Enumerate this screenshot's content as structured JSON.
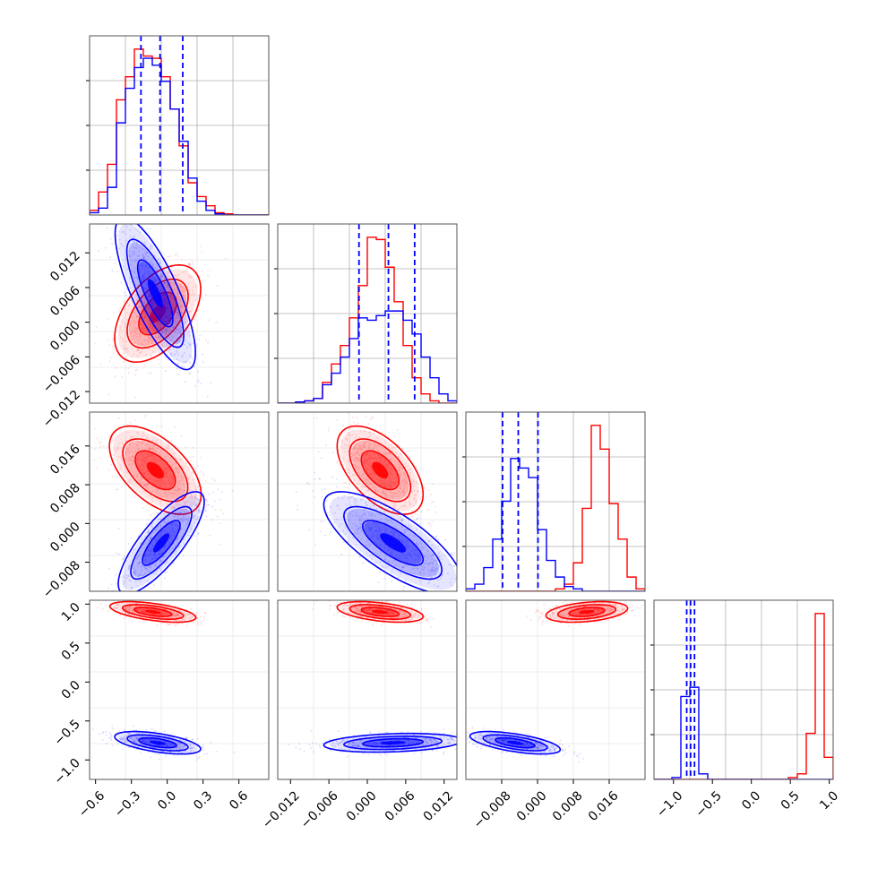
{
  "chart_data": {
    "type": "corner",
    "colors": {
      "red": "#ff0000",
      "blue": "#0000ff",
      "grid": "#b0b0b0",
      "axis": "#000000"
    },
    "series": [
      {
        "color": "#ff0000"
      },
      {
        "color": "#0000ff"
      }
    ],
    "grid": true,
    "panels": {
      "p00": {
        "type": "histogram",
        "xlim": [
          -0.65,
          0.85
        ],
        "red": {
          "edges": [
            -0.65,
            -0.575,
            -0.5,
            -0.425,
            -0.35,
            -0.275,
            -0.2,
            -0.125,
            -0.05,
            0.025,
            0.1,
            0.175,
            0.25,
            0.325,
            0.4,
            0.475,
            0.55,
            0.625,
            0.7,
            0.775,
            0.85
          ],
          "counts": [
            2,
            10,
            22,
            50,
            60,
            72,
            69,
            68,
            60,
            46,
            30,
            14,
            8,
            4,
            1,
            0.5,
            0,
            0,
            0,
            0
          ]
        },
        "blue": {
          "edges": [
            -0.65,
            -0.575,
            -0.5,
            -0.425,
            -0.35,
            -0.275,
            -0.2,
            -0.125,
            -0.05,
            0.025,
            0.1,
            0.175,
            0.25,
            0.325,
            0.4,
            0.475,
            0.55,
            0.625,
            0.7,
            0.775,
            0.85
          ],
          "counts": [
            1,
            3,
            12,
            40,
            55,
            64,
            68,
            65,
            58,
            46,
            32,
            16,
            6,
            2,
            0.5,
            0,
            0,
            0,
            0,
            0
          ]
        },
        "quantiles": [
          -0.22,
          -0.06,
          0.13
        ]
      },
      "p11": {
        "type": "histogram",
        "xlim": [
          -0.014,
          0.014
        ],
        "red": {
          "edges": [
            -0.014,
            -0.0126,
            -0.0112,
            -0.0098,
            -0.0084,
            -0.007,
            -0.0056,
            -0.0042,
            -0.0028,
            -0.0014,
            0,
            0.0014,
            0.0028,
            0.0042,
            0.0056,
            0.007,
            0.0084,
            0.0098,
            0.0112,
            0.0126,
            0.014
          ],
          "counts": [
            0,
            0,
            0.5,
            1,
            2,
            9,
            17,
            25,
            37,
            51,
            72,
            71,
            59,
            44,
            25,
            11,
            4,
            1,
            0,
            0
          ]
        },
        "blue": {
          "edges": [
            -0.014,
            -0.0126,
            -0.0112,
            -0.0098,
            -0.0084,
            -0.007,
            -0.0056,
            -0.0042,
            -0.0028,
            -0.0014,
            0,
            0.0014,
            0.0028,
            0.0042,
            0.0056,
            0.007,
            0.0084,
            0.0098,
            0.0112,
            0.0126,
            0.014
          ],
          "counts": [
            0,
            0,
            0.5,
            1,
            2,
            8,
            13,
            20,
            28,
            37,
            36,
            38,
            40,
            40,
            36,
            30,
            20,
            11,
            4,
            1
          ]
        },
        "quantiles": [
          -0.0013,
          0.0033,
          0.0074
        ]
      },
      "p22": {
        "type": "histogram",
        "xlim": [
          -0.016,
          0.024
        ],
        "red": {
          "edges": [
            -0.016,
            -0.014,
            -0.012,
            -0.01,
            -0.008,
            -0.006,
            -0.004,
            -0.002,
            0,
            0.002,
            0.004,
            0.006,
            0.008,
            0.01,
            0.012,
            0.014,
            0.016,
            0.018,
            0.02,
            0.022,
            0.024
          ],
          "counts": [
            0,
            0,
            0,
            0,
            0,
            0,
            0,
            0,
            0,
            0,
            1,
            3,
            12,
            35,
            70,
            60,
            37,
            22,
            6,
            1
          ]
        },
        "blue": {
          "edges": [
            -0.016,
            -0.014,
            -0.012,
            -0.01,
            -0.008,
            -0.006,
            -0.004,
            -0.002,
            0,
            0.002,
            0.004,
            0.006,
            0.008,
            0.01,
            0.012,
            0.014,
            0.016,
            0.018,
            0.02,
            0.022,
            0.024
          ],
          "counts": [
            1,
            3,
            10,
            22,
            38,
            56,
            52,
            48,
            26,
            13,
            6,
            2,
            1,
            0,
            0,
            0,
            0,
            0,
            0,
            0
          ]
        },
        "quantiles": [
          -0.0078,
          -0.0043,
          0.0001
        ]
      },
      "p33": {
        "type": "histogram",
        "xlim": [
          -1.25,
          1.05
        ],
        "red": {
          "edges": [
            -1.25,
            -1.135,
            -1.02,
            -0.905,
            -0.79,
            -0.675,
            -0.56,
            -0.445,
            -0.33,
            -0.215,
            -0.1,
            0.015,
            0.13,
            0.245,
            0.36,
            0.475,
            0.59,
            0.705,
            0.82,
            0.935,
            1.05
          ],
          "counts": [
            0,
            0,
            0,
            0,
            0,
            0,
            0,
            0,
            0,
            0,
            0,
            0,
            0,
            0,
            0,
            1,
            3,
            25,
            90,
            12
          ]
        },
        "blue": {
          "edges": [
            -1.25,
            -1.135,
            -1.02,
            -0.905,
            -0.79,
            -0.675,
            -0.56,
            -0.445,
            -0.33,
            -0.215,
            -0.1,
            0.015,
            0.13,
            0.245,
            0.36,
            0.475,
            0.59,
            0.705,
            0.82,
            0.935,
            1.05
          ],
          "counts": [
            0,
            0,
            1,
            45,
            50,
            3,
            0,
            0,
            0,
            0,
            0,
            0,
            0,
            0,
            0,
            0,
            0,
            0,
            0,
            0
          ]
        },
        "quantiles": [
          -0.83,
          -0.78,
          -0.73
        ]
      },
      "p10": {
        "type": "contour2d",
        "xlim": [
          -0.65,
          0.85
        ],
        "ylim": [
          -0.014,
          0.017
        ],
        "red": {
          "mean": [
            -0.08,
            0.0015
          ],
          "sd": [
            0.15,
            0.0035
          ],
          "rho": 0.5
        },
        "blue": {
          "mean": [
            -0.1,
            0.005
          ],
          "sd": [
            0.14,
            0.0055
          ],
          "rho": -0.78
        }
      },
      "p20": {
        "type": "contour2d",
        "xlim": [
          -0.65,
          0.85
        ],
        "ylim": [
          -0.014,
          0.023
        ],
        "red": {
          "mean": [
            -0.1,
            0.011
          ],
          "sd": [
            0.16,
            0.0038
          ],
          "rho": -0.55
        },
        "blue": {
          "mean": [
            -0.05,
            -0.004
          ],
          "sd": [
            0.15,
            0.0044
          ],
          "rho": 0.8
        }
      },
      "p21": {
        "type": "contour2d",
        "xlim": [
          -0.014,
          0.014
        ],
        "ylim": [
          -0.014,
          0.023
        ],
        "red": {
          "mean": [
            0.002,
            0.011
          ],
          "sd": [
            0.0028,
            0.0038
          ],
          "rho": -0.55
        },
        "blue": {
          "mean": [
            0.004,
            -0.004
          ],
          "sd": [
            0.0045,
            0.0044
          ],
          "rho": -0.75
        }
      },
      "p30": {
        "type": "contour2d",
        "xlim": [
          -0.65,
          0.85
        ],
        "ylim": [
          -1.25,
          1.05
        ],
        "red": {
          "mean": [
            -0.12,
            0.9
          ],
          "sd": [
            0.15,
            0.055
          ],
          "rho": -0.55
        },
        "blue": {
          "mean": [
            -0.08,
            -0.78
          ],
          "sd": [
            0.15,
            0.06
          ],
          "rho": -0.55
        }
      },
      "p31": {
        "type": "contour2d",
        "xlim": [
          -0.014,
          0.014
        ],
        "ylim": [
          -1.25,
          1.05
        ],
        "red": {
          "mean": [
            0.002,
            0.9
          ],
          "sd": [
            0.0028,
            0.055
          ],
          "rho": -0.45
        },
        "blue": {
          "mean": [
            0.004,
            -0.78
          ],
          "sd": [
            0.0045,
            0.05
          ],
          "rho": 0.25
        }
      },
      "p32": {
        "type": "contour2d",
        "xlim": [
          -0.016,
          0.024
        ],
        "ylim": [
          -1.25,
          1.05
        ],
        "red": {
          "mean": [
            0.011,
            0.9
          ],
          "sd": [
            0.0038,
            0.055
          ],
          "rho": 0.35
        },
        "blue": {
          "mean": [
            -0.005,
            -0.78
          ],
          "sd": [
            0.0042,
            0.06
          ],
          "rho": -0.6
        }
      }
    },
    "xticks": {
      "col0": {
        "values": [
          -0.6,
          -0.3,
          0.0,
          0.3,
          0.6
        ],
        "labels": [
          "−0.6",
          "−0.3",
          "0.0",
          "0.3",
          "0.6"
        ]
      },
      "col1": {
        "values": [
          -0.012,
          -0.006,
          0.0,
          0.006,
          0.012
        ],
        "labels": [
          "−0.012",
          "−0.006",
          "0.000",
          "0.006",
          "0.012"
        ]
      },
      "col2": {
        "values": [
          -0.008,
          0.0,
          0.008,
          0.016
        ],
        "labels": [
          "−0.008",
          "0.000",
          "0.008",
          "0.016"
        ]
      },
      "col3": {
        "values": [
          -1.0,
          -0.5,
          0.0,
          0.5,
          1.0
        ],
        "labels": [
          "−1.0",
          "−0.5",
          "0.0",
          "0.5",
          "1.0"
        ]
      }
    },
    "yticks": {
      "row1": {
        "values": [
          0.012,
          0.006,
          0.0,
          -0.006,
          -0.012
        ],
        "labels": [
          "0.012",
          "0.006",
          "0.000",
          "−0.006",
          "−0.012"
        ]
      },
      "row2": {
        "values": [
          0.016,
          0.008,
          0.0,
          -0.008
        ],
        "labels": [
          "0.016",
          "0.008",
          "0.000",
          "−0.008"
        ]
      },
      "row3": {
        "values": [
          1.0,
          0.5,
          0.0,
          -0.5,
          -1.0
        ],
        "labels": [
          "1.0",
          "0.5",
          "0.0",
          "−0.5",
          "−1.0"
        ]
      }
    }
  }
}
